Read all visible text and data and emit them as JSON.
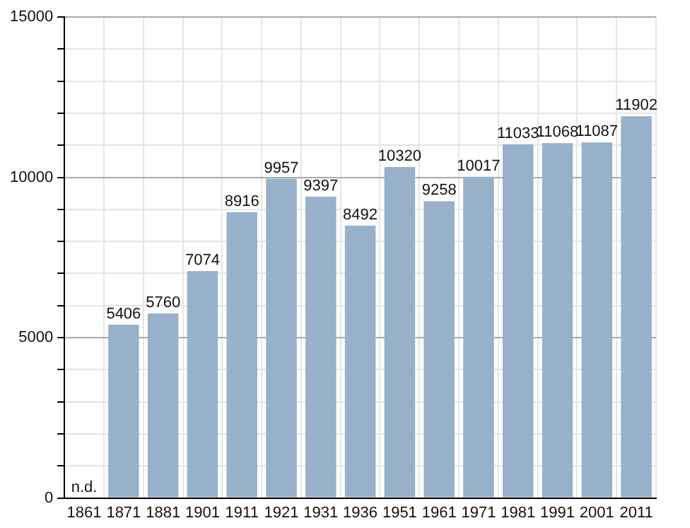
{
  "chart_data": {
    "type": "bar",
    "categories": [
      "1861",
      "1871",
      "1881",
      "1901",
      "1911",
      "1921",
      "1931",
      "1936",
      "1951",
      "1961",
      "1971",
      "1981",
      "1991",
      "2001",
      "2011"
    ],
    "values": [
      null,
      5406,
      5760,
      7074,
      8916,
      9957,
      9397,
      8492,
      10320,
      9258,
      10017,
      11033,
      11068,
      11087,
      11902
    ],
    "value_labels": [
      "n.d.",
      "5406",
      "5760",
      "7074",
      "8916",
      "9957",
      "9397",
      "8492",
      "10320",
      "9258",
      "10017",
      "11033",
      "11068",
      "11087",
      "11902"
    ],
    "color": "#97b1cb",
    "ylim": [
      0,
      15000
    ],
    "yticks": [
      0,
      {
        "value": 1000,
        "label": null
      },
      {
        "value": 2000,
        "label": null
      },
      {
        "value": 3000,
        "label": null
      },
      {
        "value": 4000,
        "label": null
      },
      5000,
      {
        "value": 6000,
        "label": null
      },
      {
        "value": 7000,
        "label": null
      },
      {
        "value": 8000,
        "label": null
      },
      {
        "value": 9000,
        "label": null
      },
      10000,
      {
        "value": 11000,
        "label": null
      },
      {
        "value": 12000,
        "label": null
      },
      {
        "value": 13000,
        "label": null
      },
      {
        "value": 14000,
        "label": null
      },
      15000
    ],
    "grid": true,
    "legend": false
  }
}
